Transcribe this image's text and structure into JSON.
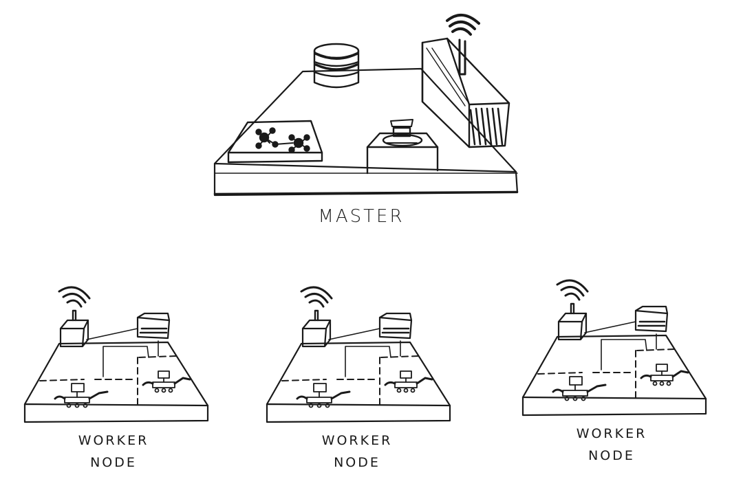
{
  "master": {
    "label": "MASTER"
  },
  "workers": [
    {
      "line1": "WORKER",
      "line2": "NODE"
    },
    {
      "line1": "WORKER",
      "line2": "NODE"
    },
    {
      "line1": "WORKER",
      "line2": "NODE"
    }
  ],
  "ink_color": "#1a1a1a",
  "icons": [
    "database-icon",
    "server-rack-icon",
    "network-graph-icon",
    "steering-wheel-icon",
    "antenna-icon",
    "robot-icon"
  ]
}
